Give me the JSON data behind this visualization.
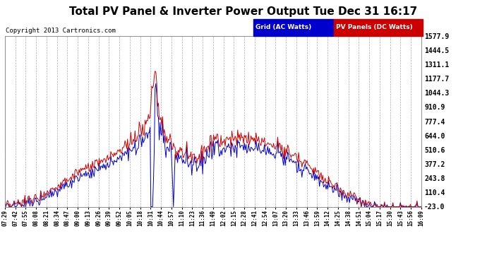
{
  "title": "Total PV Panel & Inverter Power Output Tue Dec 31 16:17",
  "copyright": "Copyright 2013 Cartronics.com",
  "ylabel_right_ticks": [
    1577.9,
    1444.5,
    1311.1,
    1177.7,
    1044.3,
    910.9,
    777.4,
    644.0,
    510.6,
    377.2,
    243.8,
    110.4,
    -23.0
  ],
  "ymin": -23.0,
  "ymax": 1577.9,
  "legend_grid_label": "Grid (AC Watts)",
  "legend_pv_label": "PV Panels (DC Watts)",
  "grid_color": "#0000cc",
  "pv_color": "#cc0000",
  "bg_color": "#ffffff",
  "plot_bg": "#ffffff",
  "grid_line_color": "#aaaaaa",
  "x_times": [
    "07:29",
    "07:42",
    "07:55",
    "08:08",
    "08:21",
    "08:34",
    "08:47",
    "09:00",
    "09:13",
    "09:26",
    "09:39",
    "09:52",
    "10:05",
    "10:18",
    "10:31",
    "10:44",
    "10:57",
    "11:10",
    "11:23",
    "11:36",
    "11:49",
    "12:02",
    "12:15",
    "12:28",
    "12:41",
    "12:54",
    "13:07",
    "13:20",
    "13:33",
    "13:46",
    "13:59",
    "14:12",
    "14:25",
    "14:38",
    "14:51",
    "15:04",
    "15:17",
    "15:30",
    "15:43",
    "15:56",
    "16:09"
  ]
}
